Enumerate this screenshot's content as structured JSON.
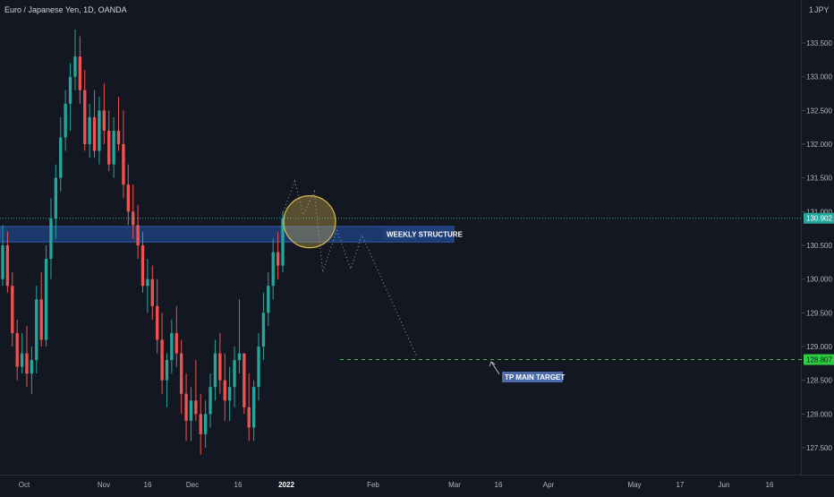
{
  "header": {
    "symbol": "Euro / Japanese Yen, 1D, OANDA",
    "currency": "JPY",
    "currency_prefix": "1"
  },
  "annotations": {
    "zone_label": "WEEKLY STRUCTURE",
    "target_label": "TP MAIN TARGET"
  },
  "colors": {
    "background": "#131722",
    "up_candle": "#26a69a",
    "down_candle": "#ef5350",
    "zone_fill": "#1e3f7a",
    "zone_label_bg": "#1e3f7a",
    "current_price_line": "#26a69a",
    "target_line": "#4caf50",
    "target_badge": "#2ecc40",
    "circle": "#d9b84c",
    "axis_text": "#b2b5be"
  },
  "chart_data": {
    "type": "candlestick",
    "title": "",
    "y_axis": {
      "ticks": [
        "127.500",
        "128.000",
        "128.500",
        "129.000",
        "129.500",
        "130.000",
        "130.500",
        "131.000",
        "131.500",
        "132.000",
        "132.500",
        "133.000",
        "133.500"
      ],
      "ylim": [
        127.2,
        134.0
      ]
    },
    "x_axis": {
      "labels": [
        "Oct",
        "Nov",
        "16",
        "Dec",
        "16",
        "2022",
        "Feb",
        "Mar",
        "16",
        "Apr",
        "May",
        "17",
        "Jun",
        "16"
      ]
    },
    "current_price": {
      "value": 130.902,
      "label": "130.902"
    },
    "target_price": {
      "value": 128.807,
      "label": "128.807"
    },
    "zone": {
      "low": 130.55,
      "high": 130.78,
      "label": "WEEKLY STRUCTURE"
    },
    "projected_path": [
      [
        "2021-12-31",
        131.0
      ],
      [
        "2022-01-04",
        131.45
      ],
      [
        "2022-01-07",
        130.95
      ],
      [
        "2022-01-11",
        131.3
      ],
      [
        "2022-01-14",
        130.1
      ],
      [
        "2022-01-19",
        130.72
      ],
      [
        "2022-01-24",
        130.15
      ],
      [
        "2022-01-28",
        130.65
      ],
      [
        "2022-02-16",
        128.85
      ]
    ],
    "candles": [
      [
        130.0,
        130.8,
        129.9,
        130.5
      ],
      [
        130.5,
        130.7,
        129.8,
        129.9
      ],
      [
        129.9,
        130.1,
        129.0,
        129.2
      ],
      [
        129.2,
        129.4,
        128.5,
        128.7
      ],
      [
        128.7,
        129.2,
        128.6,
        128.9
      ],
      [
        128.9,
        129.3,
        128.4,
        128.6
      ],
      [
        128.6,
        129.0,
        128.3,
        128.8
      ],
      [
        128.8,
        129.9,
        128.6,
        129.7
      ],
      [
        129.7,
        130.1,
        129.0,
        129.1
      ],
      [
        129.1,
        130.5,
        129.0,
        130.3
      ],
      [
        130.3,
        131.2,
        130.0,
        130.9
      ],
      [
        130.9,
        131.7,
        130.6,
        131.5
      ],
      [
        131.5,
        132.4,
        131.3,
        132.1
      ],
      [
        132.1,
        132.8,
        131.9,
        132.6
      ],
      [
        132.6,
        133.2,
        132.2,
        133.0
      ],
      [
        133.0,
        133.7,
        132.8,
        133.3
      ],
      [
        133.3,
        133.6,
        132.6,
        132.8
      ],
      [
        132.8,
        133.1,
        131.9,
        132.0
      ],
      [
        132.0,
        132.6,
        131.8,
        132.4
      ],
      [
        132.4,
        132.8,
        131.8,
        131.9
      ],
      [
        131.9,
        132.7,
        131.7,
        132.5
      ],
      [
        132.5,
        132.9,
        132.0,
        132.2
      ],
      [
        132.2,
        132.5,
        131.6,
        131.7
      ],
      [
        131.7,
        132.4,
        131.5,
        132.2
      ],
      [
        132.2,
        132.7,
        131.9,
        132.0
      ],
      [
        132.0,
        132.5,
        131.2,
        131.4
      ],
      [
        131.4,
        131.7,
        130.8,
        131.0
      ],
      [
        131.0,
        131.4,
        130.6,
        130.8
      ],
      [
        130.8,
        131.1,
        130.3,
        130.5
      ],
      [
        130.5,
        130.7,
        129.8,
        129.9
      ],
      [
        129.9,
        130.3,
        129.5,
        130.0
      ],
      [
        130.0,
        130.2,
        129.4,
        129.6
      ],
      [
        129.6,
        130.0,
        128.9,
        129.1
      ],
      [
        129.1,
        129.5,
        128.3,
        128.5
      ],
      [
        128.5,
        128.9,
        128.1,
        128.8
      ],
      [
        128.8,
        129.4,
        128.6,
        129.2
      ],
      [
        129.2,
        129.6,
        128.7,
        128.9
      ],
      [
        128.9,
        129.1,
        128.0,
        128.3
      ],
      [
        128.3,
        128.6,
        127.6,
        127.9
      ],
      [
        127.9,
        128.4,
        127.6,
        128.2
      ],
      [
        128.2,
        128.8,
        127.9,
        128.0
      ],
      [
        128.0,
        128.3,
        127.4,
        127.7
      ],
      [
        127.7,
        128.2,
        127.5,
        128.0
      ],
      [
        128.0,
        128.6,
        127.8,
        128.4
      ],
      [
        128.4,
        129.1,
        128.2,
        128.9
      ],
      [
        128.9,
        129.2,
        128.3,
        128.5
      ],
      [
        128.5,
        128.9,
        127.9,
        128.2
      ],
      [
        128.2,
        128.7,
        127.9,
        128.4
      ],
      [
        128.4,
        129.0,
        128.1,
        128.8
      ],
      [
        128.8,
        129.7,
        128.6,
        128.9
      ],
      [
        128.9,
        128.9,
        128.0,
        128.1
      ],
      [
        128.1,
        128.6,
        127.6,
        127.8
      ],
      [
        127.8,
        128.5,
        127.6,
        128.4
      ],
      [
        128.4,
        129.2,
        128.2,
        129.0
      ],
      [
        129.0,
        129.8,
        128.8,
        129.5
      ],
      [
        129.5,
        130.1,
        129.3,
        129.9
      ],
      [
        129.9,
        130.6,
        129.7,
        130.4
      ],
      [
        130.4,
        130.7,
        130.0,
        130.2
      ],
      [
        130.2,
        131.0,
        130.1,
        130.9
      ]
    ]
  }
}
